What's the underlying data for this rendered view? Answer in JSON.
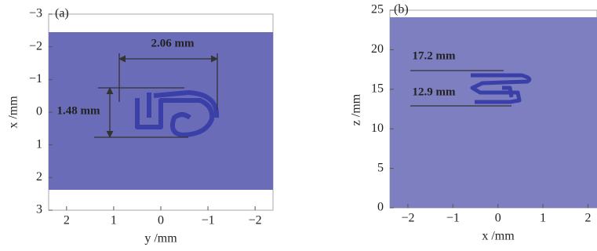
{
  "chart_data": [
    {
      "type": "image",
      "title": "(a)",
      "x_label": "y /mm",
      "y_label": "x /mm",
      "xlim": [
        2.38,
        -2.38
      ],
      "ylim": [
        3,
        -3
      ],
      "xticks": [
        2,
        1,
        0,
        {
          "value": -1,
          "label": "−1"
        },
        {
          "value": -2,
          "label": "−2"
        }
      ],
      "yticks": [
        {
          "value": -3,
          "label": "−3"
        },
        {
          "value": -2,
          "label": "−2"
        },
        {
          "value": -1,
          "label": "−1"
        },
        0,
        1,
        2,
        3
      ],
      "annotations": [
        "2.06 mm",
        "1.48 mm"
      ],
      "color": "#6a6cb8"
    },
    {
      "type": "image",
      "title": "(b)",
      "x_label": "x /mm",
      "y_label": "z /mm",
      "xlim": [
        -2.4,
        2.2
      ],
      "ylim": [
        0,
        25
      ],
      "xticks": [
        {
          "value": -2,
          "label": "−2"
        },
        {
          "value": -1,
          "label": "−1"
        },
        0,
        1,
        2
      ],
      "yticks": [
        0,
        5,
        10,
        15,
        20,
        25
      ],
      "annotations": [
        "17.2 mm",
        "12.9 mm"
      ],
      "color": "#7d7fc0"
    }
  ]
}
